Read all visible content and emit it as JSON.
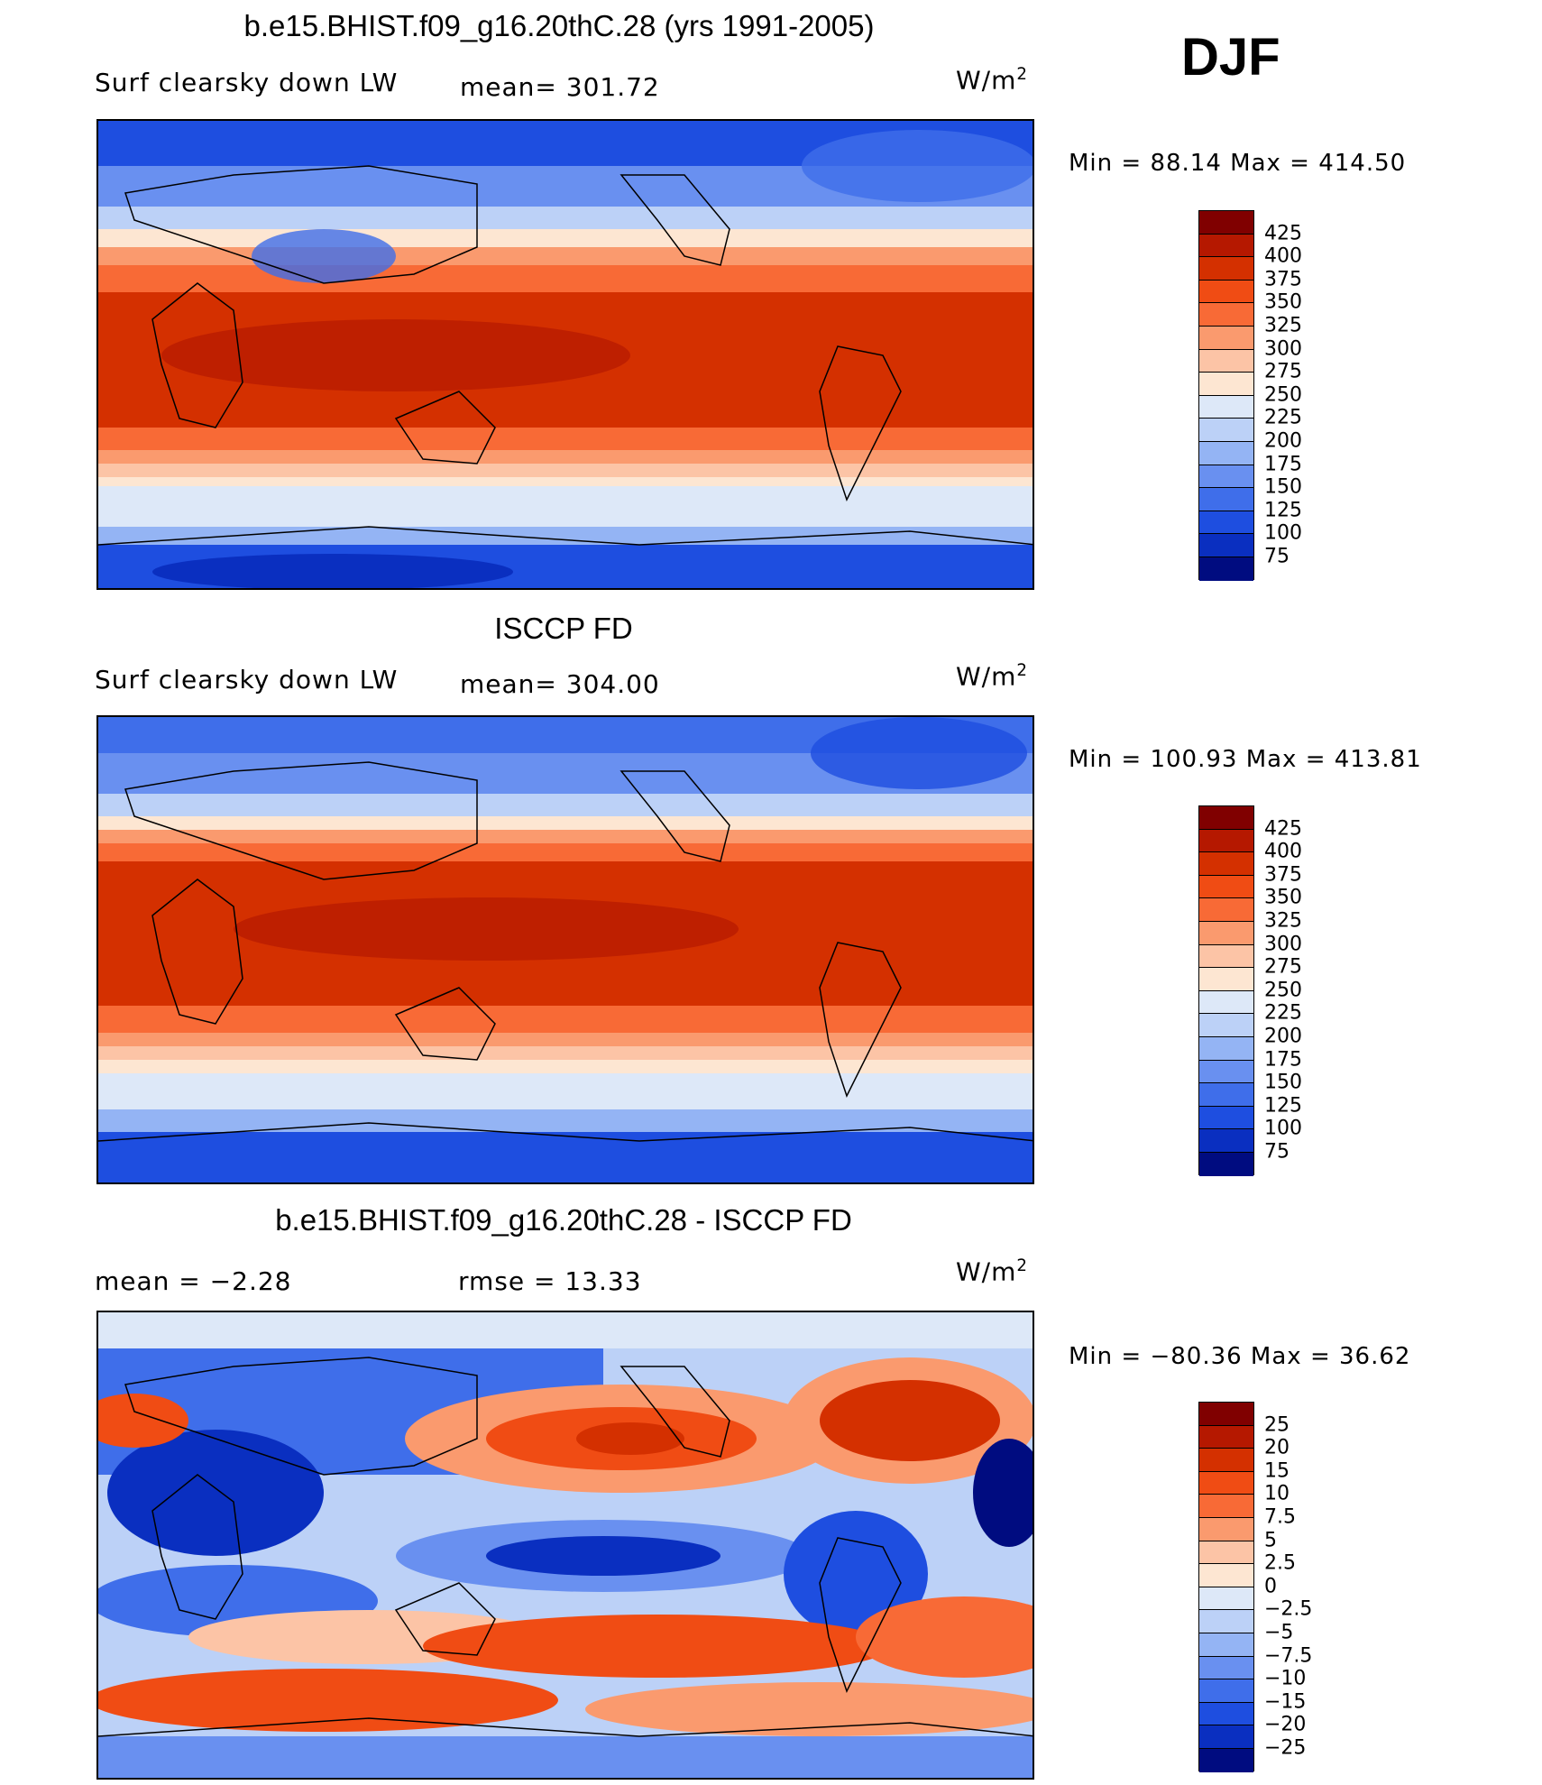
{
  "main_title": "b.e15.BHIST.f09_g16.20thC.28 (yrs 1991-2005)",
  "season": "DJF",
  "panels": [
    {
      "title": "",
      "variable": "Surf clearsky down LW",
      "stat1": "mean=  301.72",
      "stat2": "",
      "units": "W/m",
      "units_exp": "2",
      "minmax": "Min  =    88.14  Max  =  414.50",
      "colorbar_labels": [
        "425",
        "400",
        "375",
        "350",
        "325",
        "300",
        "275",
        "250",
        "225",
        "200",
        "175",
        "150",
        "125",
        "100",
        "75"
      ]
    },
    {
      "title": "ISCCP FD",
      "variable": "Surf clearsky down LW",
      "stat1": "mean=  304.00",
      "stat2": "",
      "units": "W/m",
      "units_exp": "2",
      "minmax": "Min  =  100.93  Max  =  413.81",
      "colorbar_labels": [
        "425",
        "400",
        "375",
        "350",
        "325",
        "300",
        "275",
        "250",
        "225",
        "200",
        "175",
        "150",
        "125",
        "100",
        "75"
      ]
    },
    {
      "title": "b.e15.BHIST.f09_g16.20thC.28 - ISCCP FD",
      "variable": "",
      "stat1": "mean  =    −2.28",
      "stat2": "rmse  =    13.33",
      "units": "W/m",
      "units_exp": "2",
      "minmax": "Min  = −80.36  Max  =    36.62",
      "colorbar_labels": [
        "25",
        "20",
        "15",
        "10",
        "7.5",
        "5",
        "2.5",
        "0",
        "−2.5",
        "−5",
        "−7.5",
        "−10",
        "−15",
        "−20",
        "−25"
      ]
    }
  ],
  "colors": {
    "abs_scale": [
      "#800000",
      "#b51800",
      "#d43000",
      "#f04c14",
      "#f86a36",
      "#fa9a6e",
      "#fcc4a6",
      "#fde6d2",
      "#dde8f8",
      "#bcd1f7",
      "#94b4f4",
      "#6990f0",
      "#3f6eea",
      "#1e4ee0",
      "#0a2fc0",
      "#000c80"
    ],
    "diff_scale": [
      "#800000",
      "#b51800",
      "#d43000",
      "#f04c14",
      "#f86a36",
      "#fa9a6e",
      "#fcc4a6",
      "#fde6d2",
      "#dde8f8",
      "#bcd1f7",
      "#94b4f4",
      "#6990f0",
      "#3f6eea",
      "#1e4ee0",
      "#0a2fc0",
      "#000c80"
    ]
  }
}
